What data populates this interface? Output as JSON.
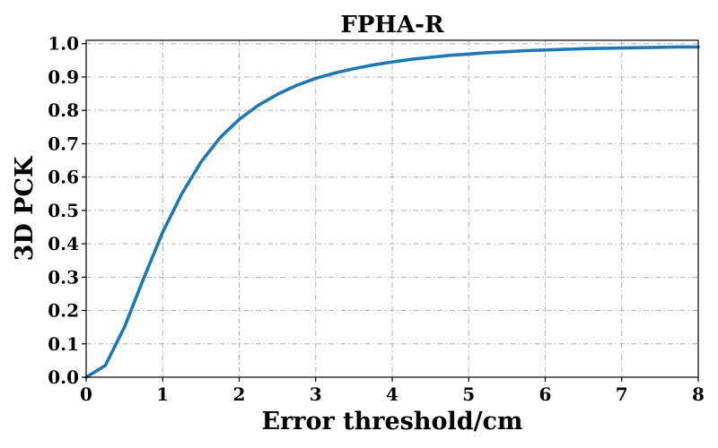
{
  "chart_data": {
    "type": "line",
    "title": "FPHA-R",
    "xlabel": "Error threshold/cm",
    "ylabel": "3D PCK",
    "xlim": [
      0,
      8
    ],
    "ylim": [
      0,
      1.01
    ],
    "xticks": [
      "0",
      "1",
      "2",
      "3",
      "4",
      "5",
      "6",
      "7",
      "8"
    ],
    "yticks": [
      "0.0",
      "0.1",
      "0.2",
      "0.3",
      "0.4",
      "0.5",
      "0.6",
      "0.7",
      "0.8",
      "0.9",
      "1.0"
    ],
    "grid": true,
    "series": [
      {
        "color": "#1f77b4",
        "x": [
          0,
          0.25,
          0.5,
          0.75,
          1.0,
          1.25,
          1.5,
          1.75,
          2.0,
          2.25,
          2.5,
          2.75,
          3.0,
          3.25,
          3.5,
          3.75,
          4.0,
          4.25,
          4.5,
          4.75,
          5.0,
          5.25,
          5.5,
          5.75,
          6.0,
          6.25,
          6.5,
          6.75,
          7.0,
          7.25,
          7.5,
          7.75,
          8.0
        ],
        "y": [
          0.0,
          0.035,
          0.15,
          0.295,
          0.435,
          0.55,
          0.645,
          0.718,
          0.773,
          0.815,
          0.848,
          0.875,
          0.896,
          0.912,
          0.925,
          0.936,
          0.945,
          0.953,
          0.959,
          0.965,
          0.969,
          0.973,
          0.976,
          0.979,
          0.981,
          0.983,
          0.985,
          0.986,
          0.987,
          0.988,
          0.989,
          0.99,
          0.99
        ]
      }
    ]
  }
}
